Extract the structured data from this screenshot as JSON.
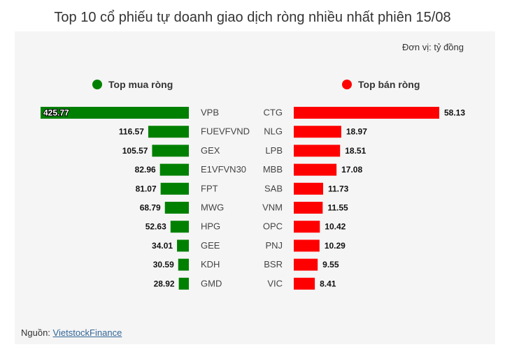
{
  "title": "Top 10 cổ phiếu tự doanh giao dịch ròng nhiều nhất phiên 15/08",
  "unit": "Đơn vị: tỷ đồng",
  "source": {
    "label": "Nguồn: ",
    "link": "VietstockFinance"
  },
  "colors": {
    "buy": "#008000",
    "sell": "#ff0000"
  },
  "chart_data": [
    {
      "type": "bar",
      "orientation": "horizontal",
      "legend": "Top mua ròng",
      "color": "#008000",
      "categories": [
        "VPB",
        "FUEVFVND",
        "GEX",
        "E1VFVN30",
        "FPT",
        "MWG",
        "HPG",
        "GEE",
        "KDH",
        "GMD"
      ],
      "values": [
        425.77,
        116.57,
        105.57,
        82.96,
        81.07,
        68.79,
        52.63,
        34.01,
        30.59,
        28.92
      ],
      "labels": [
        "425.77",
        "116.57",
        "105.57",
        "82.96",
        "81.07",
        "68.79",
        "52.63",
        "34.01",
        "30.59",
        "28.92"
      ]
    },
    {
      "type": "bar",
      "orientation": "horizontal",
      "legend": "Top bán ròng",
      "color": "#ff0000",
      "categories": [
        "CTG",
        "NLG",
        "LPB",
        "MBB",
        "SAB",
        "VNM",
        "OPC",
        "PNJ",
        "BSR",
        "VIC"
      ],
      "values": [
        58.13,
        18.97,
        18.51,
        17.08,
        11.73,
        11.55,
        10.42,
        10.29,
        9.55,
        8.41
      ],
      "labels": [
        "58.13",
        "18.97",
        "18.51",
        "17.08",
        "11.73",
        "11.55",
        "10.42",
        "10.29",
        "9.55",
        "8.41"
      ]
    }
  ]
}
